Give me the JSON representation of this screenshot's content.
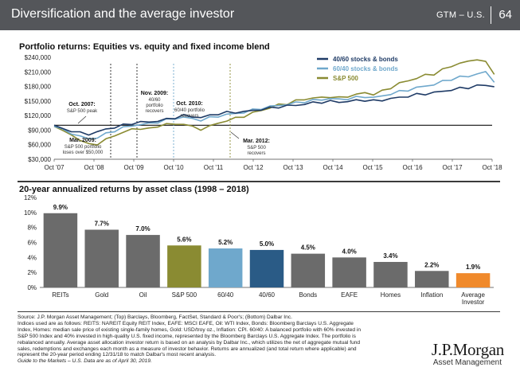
{
  "header": {
    "title": "Diversification and the average investor",
    "gtm": "GTM – U.S.",
    "page": "64"
  },
  "top_chart": {
    "title": "Portfolio returns: Equities vs. equity and fixed income blend",
    "type": "line",
    "x_ticks": [
      "Oct '07",
      "Oct '08",
      "Oct '09",
      "Oct '10",
      "Oct '11",
      "Oct '12",
      "Oct '13",
      "Oct '14",
      "Oct '15",
      "Oct '16",
      "Oct '17",
      "Oct '18"
    ],
    "y_ticks": [
      "$30,000",
      "$60,000",
      "$90,000",
      "$120,000",
      "$150,000",
      "$180,000",
      "$210,000",
      "$240,000"
    ],
    "ylim": [
      30000,
      240000
    ],
    "baseline": 100000,
    "series": [
      {
        "name": "40/60 stocks & bonds",
        "color": "#1f3b66",
        "values": [
          100000,
          92000,
          89000,
          84000,
          82000,
          86000,
          92000,
          96000,
          100000,
          104000,
          106000,
          107000,
          109000,
          112000,
          116000,
          120000,
          118000,
          116000,
          120000,
          124000,
          126000,
          127000,
          128000,
          130000,
          133000,
          135000,
          138000,
          140000,
          141000,
          144000,
          146000,
          148000,
          149000,
          148000,
          149000,
          151000,
          152000,
          150000,
          152000,
          155000,
          157000,
          160000,
          163000,
          165000,
          167000,
          170000,
          173000,
          176000,
          178000,
          181000,
          183000,
          180000
        ]
      },
      {
        "name": "60/40 stocks & bonds",
        "color": "#6fa8cc",
        "values": [
          100000,
          90000,
          84000,
          77000,
          72000,
          75000,
          82000,
          89000,
          95000,
          99000,
          102000,
          103000,
          107000,
          111000,
          114000,
          117000,
          113000,
          111000,
          115000,
          119000,
          122000,
          124000,
          127000,
          131000,
          135000,
          138000,
          141000,
          143000,
          146000,
          149000,
          151000,
          153000,
          155000,
          153000,
          155000,
          157000,
          159000,
          157000,
          160000,
          165000,
          169000,
          173000,
          177000,
          181000,
          184000,
          190000,
          195000,
          199000,
          201000,
          206000,
          209000,
          191000
        ]
      },
      {
        "name": "S&P 500",
        "color": "#8a8b32",
        "values": [
          100000,
          88000,
          80000,
          70000,
          60000,
          62000,
          70000,
          79000,
          86000,
          91000,
          94000,
          92000,
          98000,
          103000,
          101000,
          104000,
          96000,
          92000,
          98000,
          104000,
          110000,
          114000,
          119000,
          125000,
          131000,
          136000,
          142000,
          145000,
          150000,
          154000,
          156000,
          157000,
          159000,
          156000,
          160000,
          163000,
          167000,
          164000,
          170000,
          178000,
          186000,
          192000,
          197000,
          203000,
          206000,
          214000,
          222000,
          228000,
          231000,
          237000,
          229000,
          207000
        ]
      }
    ],
    "annotations": [
      {
        "title": "Oct. 2007:",
        "text": [
          "S&P 500 peak"
        ]
      },
      {
        "title": "Mar. 2009:",
        "text": [
          "S&P 500 portfolio",
          "loses over $50,000"
        ]
      },
      {
        "title": "Nov. 2009:",
        "text": [
          "40/60",
          "portfolio",
          "recovers"
        ]
      },
      {
        "title": "Oct. 2010:",
        "text": [
          "60/40 portfolio",
          "recovers"
        ]
      },
      {
        "title": "Mar. 2012:",
        "text": [
          "S&P 500",
          "recovers"
        ]
      }
    ]
  },
  "bottom_chart": {
    "title": "20-year annualized returns by asset class (1998 – 2018)",
    "type": "bar",
    "categories": [
      "REITs",
      "Gold",
      "Oil",
      "S&P 500",
      "60/40",
      "40/60",
      "Bonds",
      "EAFE",
      "Homes",
      "Inflation",
      "Average Investor"
    ],
    "values": [
      9.9,
      7.7,
      7.0,
      5.6,
      5.2,
      5.0,
      4.5,
      4.0,
      3.4,
      2.2,
      1.9
    ],
    "labels": [
      "9.9%",
      "7.7%",
      "7.0%",
      "5.6%",
      "5.2%",
      "5.0%",
      "4.5%",
      "4.0%",
      "3.4%",
      "2.2%",
      "1.9%"
    ],
    "colors": [
      "#6b6b6b",
      "#6b6b6b",
      "#6b6b6b",
      "#8a8b32",
      "#6fa8cc",
      "#2a5b86",
      "#6b6b6b",
      "#6b6b6b",
      "#6b6b6b",
      "#6b6b6b",
      "#f08a2c"
    ],
    "y_ticks": [
      "0%",
      "2%",
      "4%",
      "6%",
      "8%",
      "10%",
      "12%"
    ],
    "ylim": [
      0,
      12
    ]
  },
  "footer": {
    "lines": [
      "Source: J.P. Morgan Asset Management; (Top) Barclays, Bloomberg, FactSet, Standard & Poor's; (Bottom) Dalbar Inc.",
      "Indices used are as follows: REITS: NAREIT Equity REIT Index, EAFE: MSCI EAFE, Oil: WTI Index, Bonds: Bloomberg Barclays U.S. Aggregate",
      "Index, Homes: median sale price of existing single-family homes, Gold: USD/troy oz., Inflation: CPI. 60/40: A balanced portfolio with 60% invested in",
      "S&P 500 Index and 40% invested in high-quality U.S. fixed income, represented by the Bloomberg Barclays U.S. Aggregate Index. The portfolio is",
      "rebalanced annually. Average asset allocation investor return is based on an analysis by Dalbar Inc., which utilizes the net of aggregate mutual fund",
      "sales, redemptions and exchanges each month as a measure of investor behavior. Returns are annualized (and total return where applicable) and",
      "represent the 20-year period ending 12/31/18 to match Dalbar's most recent analysis."
    ],
    "last_line": "Guide to the Markets – U.S. Data are as of April 30, 2019."
  },
  "logo": {
    "line1": "J.P.Morgan",
    "line2": "Asset Management"
  }
}
